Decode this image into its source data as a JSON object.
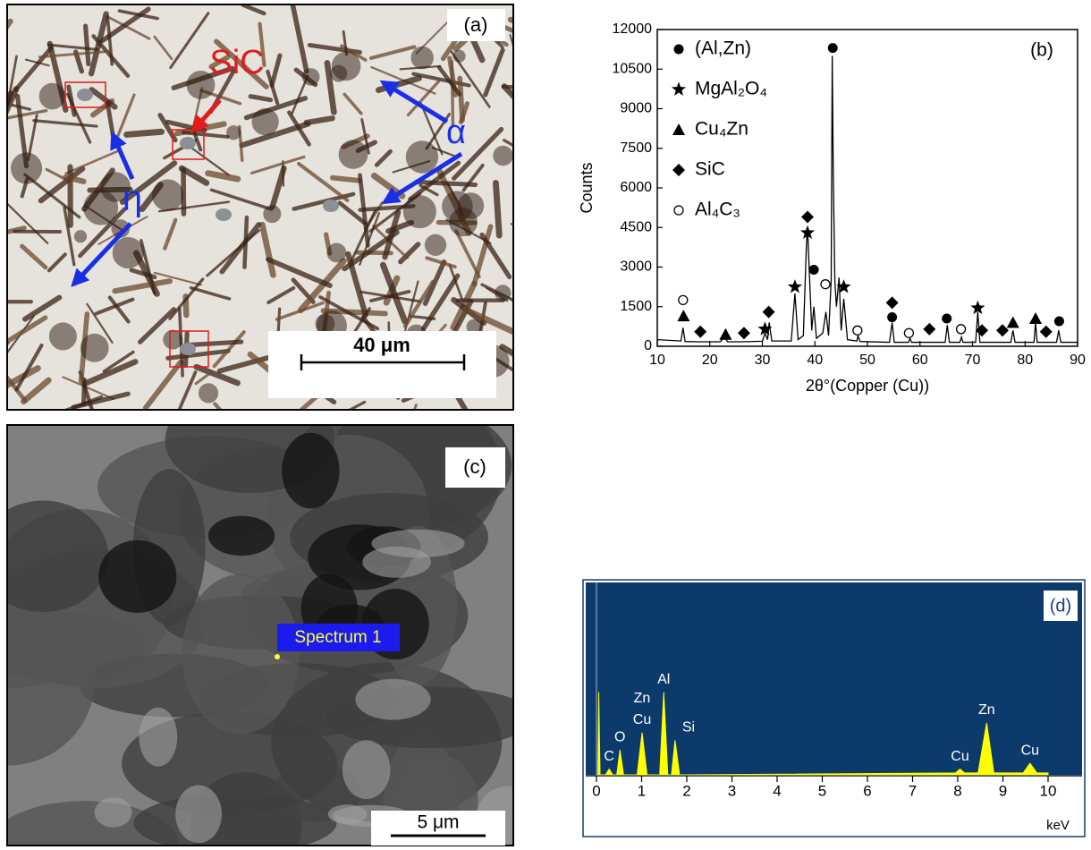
{
  "panel_a": {
    "label": "(a)",
    "annotations": [
      "SiC",
      "α",
      "η"
    ],
    "scale_bar": "40 μm"
  },
  "panel_c": {
    "label": "(c)",
    "spectrum_label": "Spectrum 1",
    "scale_bar": "5 μm"
  },
  "chart_data": [
    {
      "type": "line",
      "panel_label": "(b)",
      "x_label": "2θ°(Copper (Cu))",
      "y_label": "Counts",
      "xlim": [
        10,
        90
      ],
      "xticks": [
        10,
        20,
        30,
        40,
        50,
        60,
        70,
        80,
        90
      ],
      "ylim": [
        0,
        12000
      ],
      "yticks": [
        0,
        1500,
        3000,
        4500,
        6000,
        7500,
        9000,
        10500,
        12000
      ],
      "pattern": {
        "color": "#000000",
        "x": [
          10,
          14.5,
          14.9,
          15.3,
          18,
          22,
          22.8,
          23.4,
          26,
          30,
          30.5,
          31,
          31.3,
          31.8,
          35.5,
          36.2,
          36.8,
          37.8,
          38.4,
          38.6,
          38.9,
          39.4,
          39.8,
          40.3,
          41.5,
          42.1,
          42.6,
          43.1,
          43.3,
          43.5,
          43.8,
          44.1,
          44.6,
          45,
          45.5,
          46.2,
          48,
          48.2,
          48.6,
          54.2,
          54.7,
          55.1,
          57.8,
          58.1,
          58.4,
          64.8,
          65.2,
          65.6,
          67.6,
          67.9,
          68.2,
          70.6,
          71,
          71.4,
          77.3,
          77.7,
          78.1,
          81.7,
          82,
          82.3,
          86,
          86.4,
          86.8,
          90
        ],
        "values": [
          250,
          200,
          700,
          180,
          170,
          170,
          350,
          170,
          170,
          190,
          500,
          250,
          900,
          200,
          200,
          2000,
          250,
          400,
          3900,
          4500,
          3000,
          600,
          1500,
          300,
          500,
          1300,
          400,
          2500,
          11000,
          6500,
          2500,
          1500,
          2600,
          600,
          1800,
          250,
          200,
          400,
          180,
          150,
          900,
          150,
          150,
          300,
          150,
          150,
          800,
          150,
          150,
          350,
          150,
          150,
          1300,
          150,
          150,
          600,
          150,
          150,
          900,
          150,
          150,
          600,
          150,
          150
        ]
      },
      "series": [
        {
          "name": "(Al,Zn)",
          "marker": "circle",
          "color": "#000000",
          "x": [
            39.8,
            43.4,
            54.7,
            65.1,
            86.5
          ],
          "values": [
            2900,
            11300,
            1100,
            1050,
            950
          ]
        },
        {
          "name": "MgAl₂O₄",
          "marker": "star",
          "color": "#000000",
          "x": [
            30.5,
            36.2,
            38.6,
            45.5,
            71
          ],
          "values": [
            650,
            2250,
            4300,
            2250,
            1450
          ]
        },
        {
          "name": "Cu₄Zn",
          "marker": "triangle",
          "color": "#000000",
          "x": [
            15,
            23,
            77.7,
            82
          ],
          "values": [
            1150,
            450,
            900,
            1050
          ]
        },
        {
          "name": "SiC",
          "marker": "diamond",
          "color": "#000000",
          "x": [
            18.2,
            26.5,
            31.2,
            38.6,
            54.7,
            61.8,
            71.8,
            75.7,
            84
          ],
          "values": [
            550,
            500,
            1300,
            4900,
            1650,
            650,
            600,
            600,
            550
          ]
        },
        {
          "name": "Al₄C₃",
          "marker": "open-circle",
          "color": "#000000",
          "x": [
            14.9,
            42,
            48.1,
            57.9,
            67.8
          ],
          "values": [
            1750,
            2350,
            600,
            500,
            650
          ]
        }
      ]
    },
    {
      "type": "area",
      "panel_label": "(d)",
      "x_label": "keV",
      "xlim": [
        0,
        10
      ],
      "xticks": [
        0,
        1,
        2,
        3,
        4,
        5,
        6,
        7,
        8,
        9,
        10
      ],
      "color": "#ffff00",
      "background": "#0b3a6b",
      "x": [
        0,
        0.03,
        0.05,
        0.08,
        0.2,
        0.28,
        0.36,
        0.45,
        0.52,
        0.6,
        0.9,
        1.01,
        1.12,
        1.4,
        1.49,
        1.58,
        1.66,
        1.74,
        1.84,
        7.95,
        8.05,
        8.15,
        8.45,
        8.64,
        8.8,
        9.45,
        9.6,
        9.75,
        10
      ],
      "values": [
        0,
        0,
        43,
        0,
        0,
        3,
        0,
        0,
        13,
        0,
        0,
        22,
        0,
        0,
        43,
        0,
        0,
        18,
        0,
        1,
        3,
        1,
        1,
        27,
        1,
        1,
        6,
        1,
        1
      ],
      "peak_labels": [
        {
          "label": "C",
          "x": 0.28
        },
        {
          "label": "O",
          "x": 0.52
        },
        {
          "label": "Cu",
          "x": 1.01
        },
        {
          "label": "Zn",
          "x": 1.01
        },
        {
          "label": "Al",
          "x": 1.49
        },
        {
          "label": "Si",
          "x": 1.74
        },
        {
          "label": "Cu",
          "x": 8.05
        },
        {
          "label": "Zn",
          "x": 8.64
        },
        {
          "label": "Cu",
          "x": 9.6
        }
      ]
    }
  ]
}
